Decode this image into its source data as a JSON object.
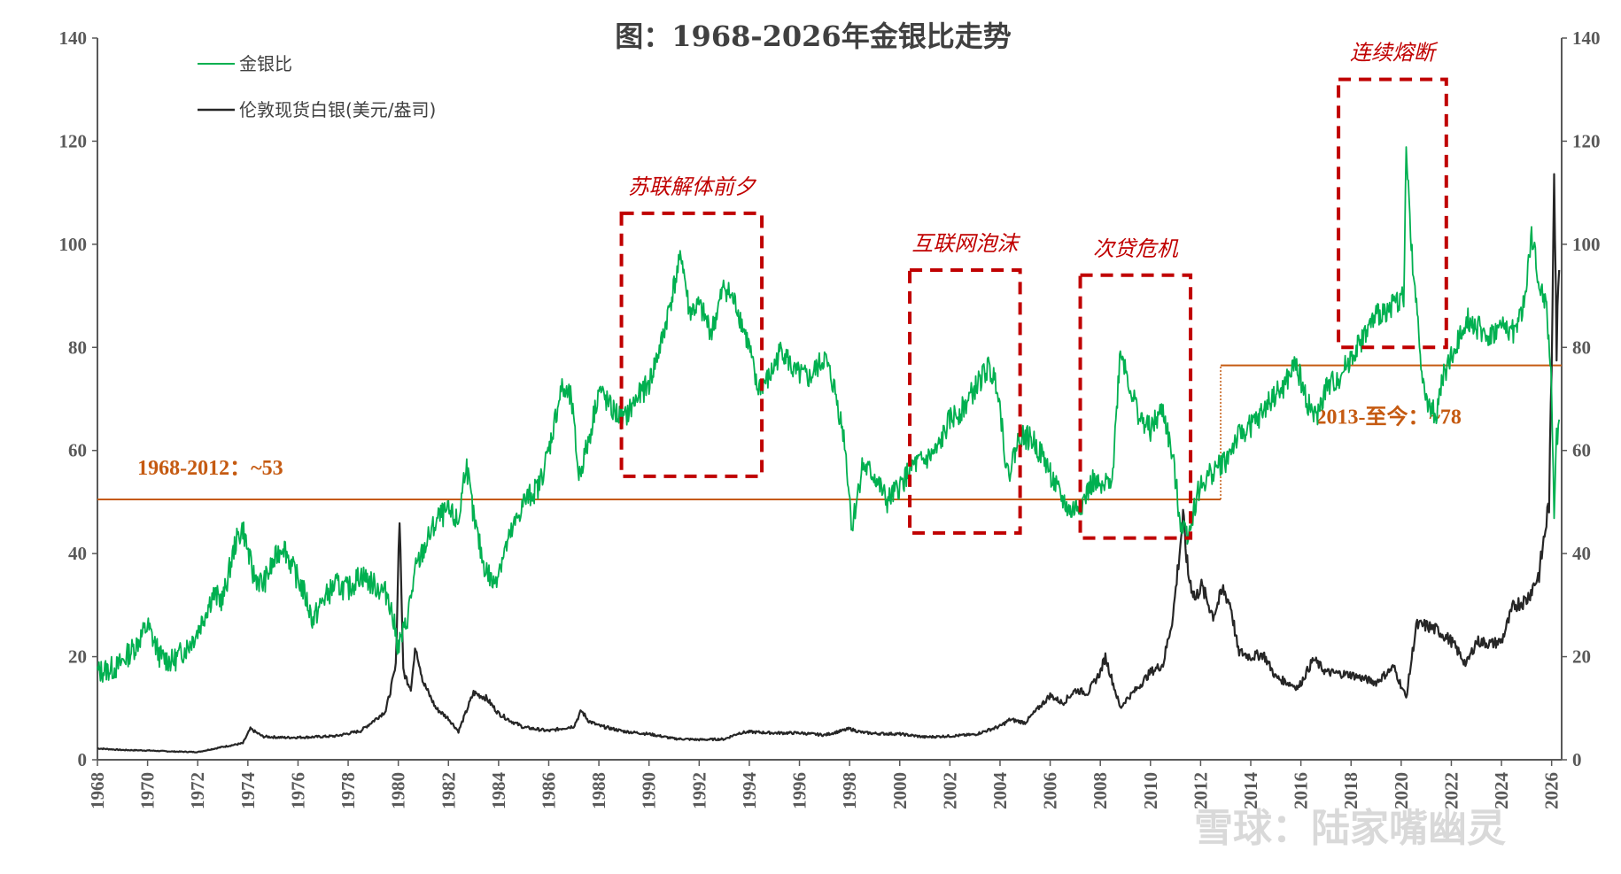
{
  "chart_data": {
    "type": "line",
    "title": "图：1968-2026年金银比走势",
    "xlim": [
      1968,
      2026.4
    ],
    "ylim_left": [
      0,
      140
    ],
    "ylim_right": [
      0,
      140
    ],
    "y_ticks": [
      "0",
      "20",
      "40",
      "60",
      "80",
      "100",
      "120",
      "140"
    ],
    "x_ticks": [
      "1968",
      "1970",
      "1972",
      "1974",
      "1976",
      "1978",
      "1980",
      "1982",
      "1984",
      "1986",
      "1988",
      "1990",
      "1992",
      "1994",
      "1996",
      "1998",
      "2000",
      "2002",
      "2004",
      "2006",
      "2008",
      "2010",
      "2012",
      "2014",
      "2016",
      "2018",
      "2020",
      "2022",
      "2024",
      "2026"
    ],
    "legend_position": "top-left",
    "series": [
      {
        "name": "金银比",
        "color": "#00b050",
        "axis": "left",
        "points": [
          [
            1968.0,
            17
          ],
          [
            1968.8,
            18
          ],
          [
            1969.5,
            22
          ],
          [
            1970.0,
            26
          ],
          [
            1970.5,
            20
          ],
          [
            1971.0,
            19
          ],
          [
            1971.6,
            22
          ],
          [
            1972.0,
            25
          ],
          [
            1972.6,
            32
          ],
          [
            1973.0,
            31
          ],
          [
            1973.5,
            42
          ],
          [
            1973.8,
            45
          ],
          [
            1974.2,
            36
          ],
          [
            1974.6,
            34
          ],
          [
            1975.0,
            38
          ],
          [
            1975.4,
            42
          ],
          [
            1975.8,
            37
          ],
          [
            1976.2,
            33
          ],
          [
            1976.6,
            27
          ],
          [
            1977.0,
            31
          ],
          [
            1977.5,
            34
          ],
          [
            1978.0,
            33
          ],
          [
            1978.5,
            36
          ],
          [
            1979.0,
            34
          ],
          [
            1979.6,
            32
          ],
          [
            1980.0,
            22
          ],
          [
            1980.3,
            26
          ],
          [
            1980.7,
            37
          ],
          [
            1981.2,
            43
          ],
          [
            1981.6,
            47
          ],
          [
            1982.0,
            48
          ],
          [
            1982.4,
            46
          ],
          [
            1982.7,
            58
          ],
          [
            1983.0,
            47
          ],
          [
            1983.4,
            38
          ],
          [
            1983.8,
            34
          ],
          [
            1984.2,
            40
          ],
          [
            1984.6,
            45
          ],
          [
            1985.0,
            50
          ],
          [
            1985.6,
            53
          ],
          [
            1986.0,
            60
          ],
          [
            1986.5,
            72
          ],
          [
            1986.9,
            70
          ],
          [
            1987.2,
            55
          ],
          [
            1987.6,
            62
          ],
          [
            1988.0,
            72
          ],
          [
            1988.5,
            68
          ],
          [
            1989.0,
            66
          ],
          [
            1989.5,
            70
          ],
          [
            1990.0,
            73
          ],
          [
            1990.5,
            81
          ],
          [
            1991.0,
            92
          ],
          [
            1991.3,
            98
          ],
          [
            1991.6,
            87
          ],
          [
            1992.0,
            88
          ],
          [
            1992.5,
            83
          ],
          [
            1993.0,
            92
          ],
          [
            1993.5,
            88
          ],
          [
            1994.0,
            80
          ],
          [
            1994.3,
            72
          ],
          [
            1994.8,
            74
          ],
          [
            1995.3,
            80
          ],
          [
            1995.8,
            75
          ],
          [
            1996.4,
            74
          ],
          [
            1997.0,
            78
          ],
          [
            1997.4,
            72
          ],
          [
            1997.8,
            62
          ],
          [
            1998.1,
            45
          ],
          [
            1998.5,
            57
          ],
          [
            1999.0,
            55
          ],
          [
            1999.5,
            50
          ],
          [
            2000.0,
            53
          ],
          [
            2000.5,
            57
          ],
          [
            2001.0,
            58
          ],
          [
            2001.5,
            60
          ],
          [
            2002.0,
            66
          ],
          [
            2002.5,
            68
          ],
          [
            2003.0,
            72
          ],
          [
            2003.5,
            76
          ],
          [
            2003.9,
            73
          ],
          [
            2004.3,
            55
          ],
          [
            2004.8,
            63
          ],
          [
            2005.3,
            62
          ],
          [
            2005.8,
            58
          ],
          [
            2006.3,
            52
          ],
          [
            2006.8,
            48
          ],
          [
            2007.3,
            50
          ],
          [
            2007.7,
            54
          ],
          [
            2008.1,
            52
          ],
          [
            2008.5,
            56
          ],
          [
            2008.8,
            80
          ],
          [
            2009.2,
            72
          ],
          [
            2009.6,
            66
          ],
          [
            2010.0,
            64
          ],
          [
            2010.5,
            68
          ],
          [
            2010.9,
            58
          ],
          [
            2011.2,
            46
          ],
          [
            2011.5,
            44
          ],
          [
            2011.9,
            52
          ],
          [
            2012.3,
            55
          ],
          [
            2012.7,
            57
          ],
          [
            2013.0,
            58
          ],
          [
            2013.4,
            62
          ],
          [
            2013.8,
            64
          ],
          [
            2014.3,
            66
          ],
          [
            2014.8,
            70
          ],
          [
            2015.3,
            72
          ],
          [
            2015.8,
            77
          ],
          [
            2016.2,
            70
          ],
          [
            2016.6,
            66
          ],
          [
            2017.0,
            72
          ],
          [
            2017.5,
            74
          ],
          [
            2018.0,
            78
          ],
          [
            2018.5,
            82
          ],
          [
            2019.0,
            86
          ],
          [
            2019.6,
            88
          ],
          [
            2020.1,
            90
          ],
          [
            2020.2,
            118
          ],
          [
            2020.4,
            100
          ],
          [
            2020.7,
            82
          ],
          [
            2021.0,
            69
          ],
          [
            2021.4,
            67
          ],
          [
            2021.7,
            75
          ],
          [
            2022.2,
            80
          ],
          [
            2022.6,
            86
          ],
          [
            2023.0,
            84
          ],
          [
            2023.5,
            82
          ],
          [
            2024.0,
            84
          ],
          [
            2024.5,
            83
          ],
          [
            2024.9,
            88
          ],
          [
            2025.2,
            102
          ],
          [
            2025.5,
            92
          ],
          [
            2025.8,
            88
          ],
          [
            2026.0,
            72
          ],
          [
            2026.1,
            48
          ],
          [
            2026.2,
            62
          ],
          [
            2026.3,
            66
          ]
        ]
      },
      {
        "name": "伦敦现货白银(美元/盎司)",
        "color": "#262626",
        "axis": "right",
        "points": [
          [
            1968.0,
            2.2
          ],
          [
            1969.0,
            1.9
          ],
          [
            1970.0,
            1.8
          ],
          [
            1971.0,
            1.6
          ],
          [
            1972.0,
            1.5
          ],
          [
            1973.0,
            2.5
          ],
          [
            1973.8,
            3.2
          ],
          [
            1974.1,
            6.0
          ],
          [
            1974.6,
            4.5
          ],
          [
            1975.5,
            4.3
          ],
          [
            1976.5,
            4.4
          ],
          [
            1977.5,
            4.6
          ],
          [
            1978.5,
            5.6
          ],
          [
            1979.0,
            7.5
          ],
          [
            1979.5,
            9.5
          ],
          [
            1979.9,
            18
          ],
          [
            1980.05,
            48
          ],
          [
            1980.2,
            17
          ],
          [
            1980.5,
            14
          ],
          [
            1980.7,
            22
          ],
          [
            1981.0,
            15
          ],
          [
            1981.5,
            10
          ],
          [
            1982.0,
            8
          ],
          [
            1982.4,
            5.5
          ],
          [
            1983.0,
            13
          ],
          [
            1983.5,
            12
          ],
          [
            1984.0,
            9
          ],
          [
            1984.5,
            7.5
          ],
          [
            1985.0,
            6.3
          ],
          [
            1986.0,
            5.6
          ],
          [
            1987.0,
            6.5
          ],
          [
            1987.3,
            9.5
          ],
          [
            1987.6,
            7.5
          ],
          [
            1988.0,
            6.6
          ],
          [
            1989.0,
            5.5
          ],
          [
            1990.0,
            5
          ],
          [
            1991.0,
            4.1
          ],
          [
            1992.0,
            3.9
          ],
          [
            1993.0,
            4.0
          ],
          [
            1993.6,
            5.2
          ],
          [
            1994.0,
            5.4
          ],
          [
            1995.0,
            5.2
          ],
          [
            1996.0,
            5.2
          ],
          [
            1997.0,
            4.8
          ],
          [
            1998.0,
            6.0
          ],
          [
            1998.5,
            5.3
          ],
          [
            1999.0,
            5.1
          ],
          [
            2000.0,
            5.0
          ],
          [
            2001.0,
            4.4
          ],
          [
            2002.0,
            4.6
          ],
          [
            2003.0,
            4.9
          ],
          [
            2004.0,
            6.5
          ],
          [
            2004.4,
            7.8
          ],
          [
            2005.0,
            7.2
          ],
          [
            2006.0,
            12.5
          ],
          [
            2006.5,
            11
          ],
          [
            2007.0,
            13.5
          ],
          [
            2007.5,
            13
          ],
          [
            2008.0,
            17
          ],
          [
            2008.2,
            20
          ],
          [
            2008.8,
            10
          ],
          [
            2009.0,
            11.5
          ],
          [
            2009.5,
            14
          ],
          [
            2010.0,
            17
          ],
          [
            2010.5,
            18.5
          ],
          [
            2010.9,
            28
          ],
          [
            2011.3,
            47
          ],
          [
            2011.5,
            36
          ],
          [
            2011.8,
            31
          ],
          [
            2012.0,
            34
          ],
          [
            2012.5,
            28
          ],
          [
            2012.9,
            33
          ],
          [
            2013.2,
            30
          ],
          [
            2013.5,
            21
          ],
          [
            2014.0,
            20
          ],
          [
            2014.5,
            20.5
          ],
          [
            2015.0,
            16
          ],
          [
            2015.9,
            14
          ],
          [
            2016.5,
            19.5
          ],
          [
            2017.0,
            17
          ],
          [
            2018.0,
            16.5
          ],
          [
            2019.0,
            15
          ],
          [
            2019.7,
            18
          ],
          [
            2020.2,
            12
          ],
          [
            2020.6,
            26
          ],
          [
            2021.0,
            26
          ],
          [
            2021.5,
            25
          ],
          [
            2022.0,
            23
          ],
          [
            2022.6,
            18.5
          ],
          [
            2023.0,
            23
          ],
          [
            2023.6,
            22.5
          ],
          [
            2024.0,
            23
          ],
          [
            2024.5,
            30
          ],
          [
            2025.0,
            31
          ],
          [
            2025.5,
            36
          ],
          [
            2025.9,
            50
          ],
          [
            2026.0,
            75
          ],
          [
            2026.1,
            118
          ],
          [
            2026.2,
            80
          ],
          [
            2026.3,
            95
          ]
        ]
      }
    ],
    "reference_lines": [
      {
        "label": "1968-2012：~53",
        "x0": 1968,
        "x1": 2012.8,
        "y": 50.5,
        "color": "#c55a11"
      },
      {
        "label": "2013-至今：~78",
        "x0": 2012.8,
        "x1": 2026.4,
        "y": 76.5,
        "color": "#c55a11"
      }
    ],
    "annotation_boxes": [
      {
        "label": "苏联解体前夕",
        "x0": 1988.9,
        "x1": 1994.5,
        "y0": 55,
        "y1": 106
      },
      {
        "label": "互联网泡沫",
        "x0": 2000.4,
        "x1": 2004.8,
        "y0": 44,
        "y1": 95
      },
      {
        "label": "次贷危机",
        "x0": 2007.2,
        "x1": 2011.6,
        "y0": 43,
        "y1": 94
      },
      {
        "label": "连续熔断",
        "x0": 2017.5,
        "x1": 2021.8,
        "y0": 80,
        "y1": 132
      }
    ]
  },
  "watermark": "雪球：陆家嘴幽灵"
}
